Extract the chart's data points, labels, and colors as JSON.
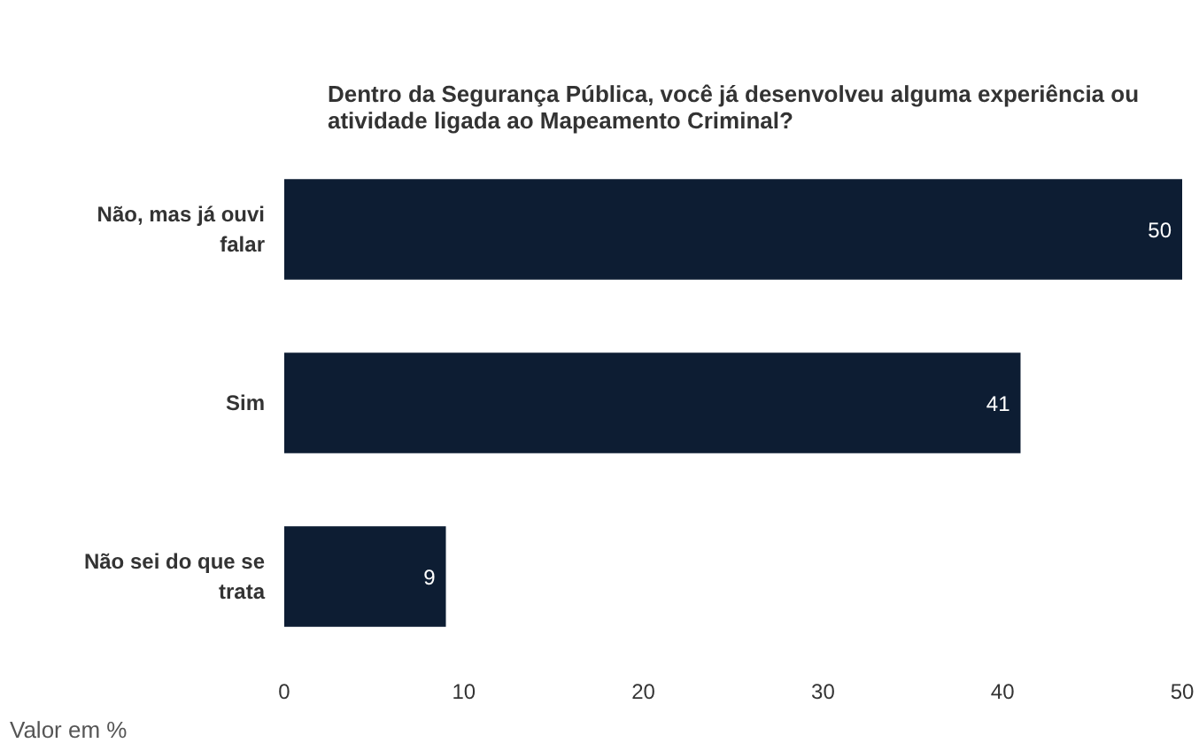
{
  "chart_data": {
    "type": "bar",
    "orientation": "horizontal",
    "title": "Dentro da Segurança Pública, você já desenvolveu alguma experiência ou atividade ligada ao Mapeamento Criminal?",
    "categories": [
      "Não, mas já ouvi falar",
      "Sim",
      "Não sei do que se trata"
    ],
    "values": [
      50,
      41,
      9
    ],
    "color": "#0d1d33",
    "data_labels": true,
    "xlim": [
      0,
      50
    ],
    "xticks": [
      0,
      10,
      20,
      30,
      40,
      50
    ],
    "grid": false,
    "annotations": [
      "Valor em %"
    ]
  }
}
